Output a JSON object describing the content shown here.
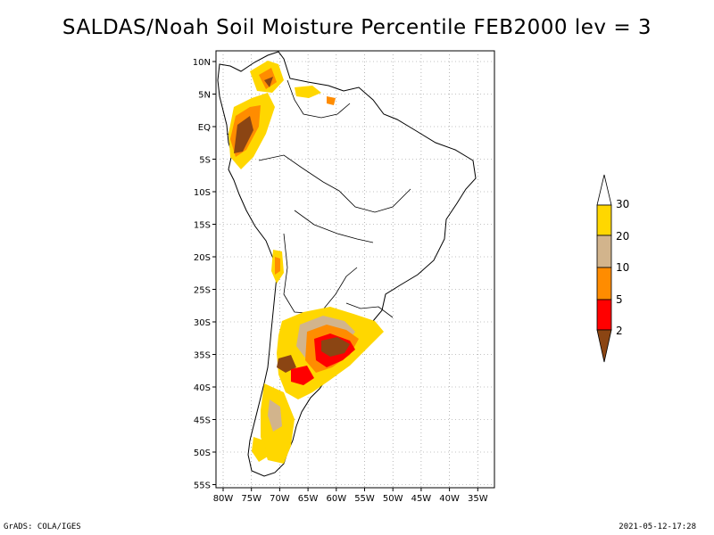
{
  "title": "SALDAS/Noah Soil Moisture Percentile FEB2000 lev = 3",
  "map": {
    "region": "South America",
    "lat_labels": [
      "10N",
      "5N",
      "EQ",
      "5S",
      "10S",
      "15S",
      "20S",
      "25S",
      "30S",
      "35S",
      "40S",
      "45S",
      "50S",
      "55S"
    ],
    "lon_labels": [
      "80W",
      "75W",
      "70W",
      "65W",
      "60W",
      "55W",
      "50W",
      "45W",
      "40W",
      "35W"
    ],
    "grid": "dotted"
  },
  "legend": {
    "labels": [
      "30",
      "20",
      "10",
      "5",
      "2"
    ],
    "colors": {
      "above_30": "#ffffff",
      "20_30": "#ffd700",
      "10_20": "#d2b48c",
      "5_10": "#ff8c00",
      "2_5": "#ff0000",
      "below_2": "#8b4513"
    }
  },
  "footer": {
    "left": "GrADS: COLA/IGES",
    "right": "2021-05-12-17:28"
  }
}
